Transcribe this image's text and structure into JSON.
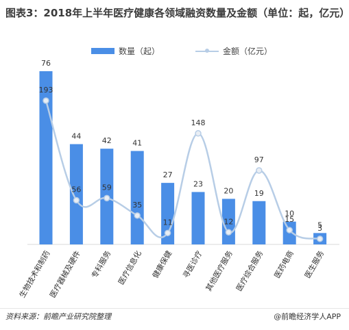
{
  "title": "图表3：2018年上半年医疗健康各领域融资数量及金额（单位：起，亿元）",
  "footer": {
    "source": "资料来源：前瞻产业研究院整理",
    "brand": "@前瞻经济学人APP"
  },
  "colors": {
    "bar": "#4a8ee6",
    "line": "#b7cde6",
    "marker_fill": "#e9eef4"
  },
  "chart_data": {
    "type": "bar",
    "categories": [
      "生物技术和制药",
      "医疗器械及硬件",
      "专科服务",
      "医疗信息化",
      "健康保健",
      "寻医诊疗",
      "其他医疗服务",
      "医疗综合服务",
      "医药电商",
      "医生服务"
    ],
    "series": [
      {
        "name": "数量（起）",
        "type": "bar",
        "values": [
          76,
          44,
          42,
          41,
          27,
          23,
          20,
          19,
          10,
          5
        ]
      },
      {
        "name": "金额（亿元）",
        "type": "line",
        "smooth": true,
        "values": [
          193,
          56,
          59,
          35,
          11,
          148,
          12,
          97,
          15,
          3
        ]
      }
    ],
    "title": "图表3：2018年上半年医疗健康各领域融资数量及金额（单位：起，亿元）",
    "legend": "top-center",
    "grid": false
  }
}
